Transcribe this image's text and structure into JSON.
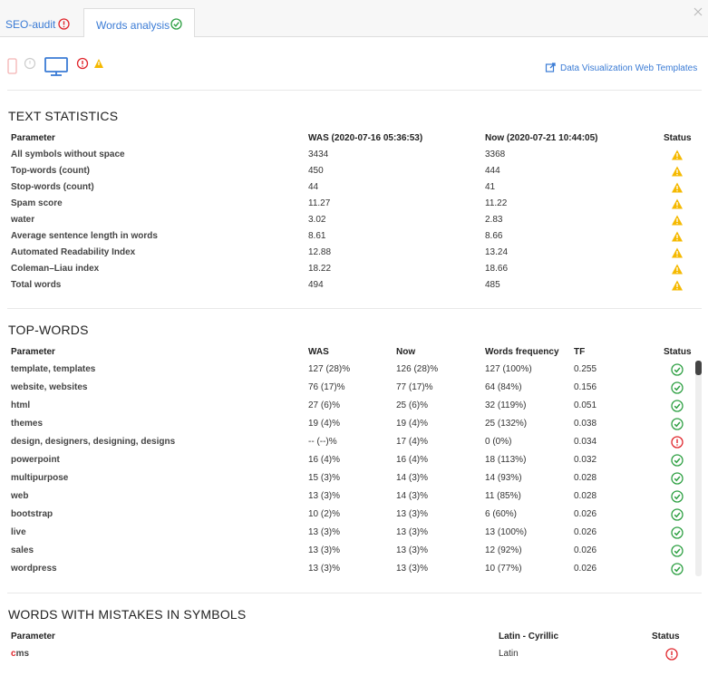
{
  "tabs": [
    "SEO-audit",
    "Words analysis"
  ],
  "link": "Data Visualization Web Templates",
  "text_statistics": {
    "title": "TEXT STATISTICS",
    "columns": [
      "Parameter",
      "WAS (2020-07-16 05:36:53)",
      "Now (2020-07-21 10:44:05)",
      "Status"
    ],
    "rows": [
      [
        "All symbols without space",
        "3434",
        "3368"
      ],
      [
        "Top-words (count)",
        "450",
        "444"
      ],
      [
        "Stop-words (count)",
        "44",
        "41"
      ],
      [
        "Spam score",
        "11.27",
        "11.22"
      ],
      [
        "water",
        "3.02",
        "2.83"
      ],
      [
        "Average sentence length in words",
        "8.61",
        "8.66"
      ],
      [
        "Automated Readability Index",
        "12.88",
        "13.24"
      ],
      [
        "Coleman–Liau index",
        "18.22",
        "18.66"
      ],
      [
        "Total words",
        "494",
        "485"
      ]
    ]
  },
  "top_words": {
    "title": "TOP-WORDS",
    "columns": [
      "Parameter",
      "WAS",
      "Now",
      "Words frequency",
      "TF",
      "Status"
    ],
    "rows": [
      [
        "template, templates",
        "127 (28)%",
        "126 (28)%",
        "127 (100%)",
        "0.255"
      ],
      [
        "website, websites",
        "76 (17)%",
        "77 (17)%",
        "64 (84%)",
        "0.156"
      ],
      [
        "html",
        "27 (6)%",
        "25 (6)%",
        "32 (119%)",
        "0.051"
      ],
      [
        "themes",
        "19 (4)%",
        "19 (4)%",
        "25 (132%)",
        "0.038"
      ],
      [
        "design, designers, designing, designs",
        "-- (--)%",
        "17 (4)%",
        "0 (0%)",
        "0.034"
      ],
      [
        "powerpoint",
        "16 (4)%",
        "16 (4)%",
        "18 (113%)",
        "0.032"
      ],
      [
        "multipurpose",
        "15 (3)%",
        "14 (3)%",
        "14 (93%)",
        "0.028"
      ],
      [
        "web",
        "13 (3)%",
        "14 (3)%",
        "11 (85%)",
        "0.028"
      ],
      [
        "bootstrap",
        "10 (2)%",
        "13 (3)%",
        "6 (60%)",
        "0.026"
      ],
      [
        "live",
        "13 (3)%",
        "13 (3)%",
        "13 (100%)",
        "0.026"
      ],
      [
        "sales",
        "13 (3)%",
        "13 (3)%",
        "12 (92%)",
        "0.026"
      ],
      [
        "wordpress",
        "13 (3)%",
        "13 (3)%",
        "10 (77%)",
        "0.026"
      ]
    ]
  },
  "mistakes": {
    "title": "WORDS WITH MISTAKES IN SYMBOLS",
    "columns": [
      "Parameter",
      "Latin - Cyrillic",
      "Status"
    ],
    "rows": [
      [
        "cms",
        "Latin"
      ]
    ]
  }
}
